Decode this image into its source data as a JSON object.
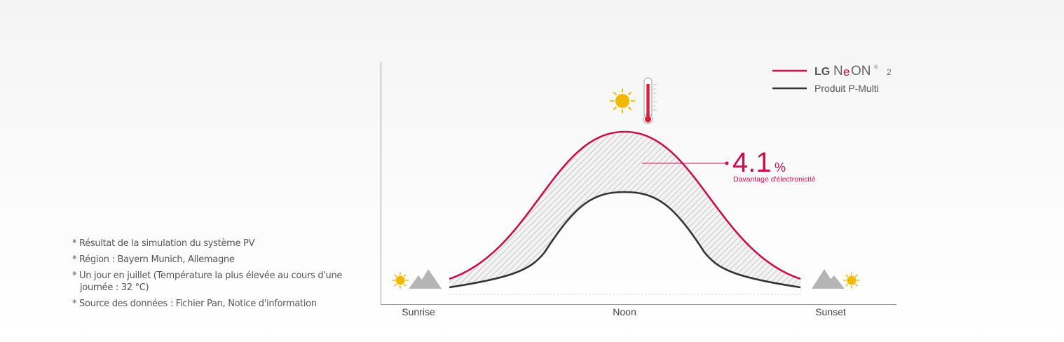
{
  "notes": [
    "* Résultat de la simulation du système PV",
    "* Région : Bayern Munich, Allemagne",
    "* Un jour en juillet (Température la plus élevée au cours d'une journée : 32 °C)",
    "* Source des données : Fichier Pan, Notice d'information"
  ],
  "colors": {
    "neon": "#c8104e",
    "multi": "#333333",
    "sun": "#f5b800",
    "mountain": "#b5b5b5",
    "axis": "#999999"
  },
  "icons": {
    "sunrise": "sun-mountain-icon",
    "sunset": "mountain-sun-icon",
    "noon": "sun-thermometer-icon"
  },
  "chart_data": {
    "type": "line",
    "categories": [
      "Sunrise",
      "Noon",
      "Sunset"
    ],
    "legend": {
      "placement": "top-right",
      "brand": "LG",
      "product_pre": "N",
      "product_e": "e",
      "product_post": "ON",
      "registered": "®",
      "product_gen": "2",
      "other": "Produit P-Multi"
    },
    "series": [
      {
        "name": "LG NeON 2",
        "color": "#c8104e"
      },
      {
        "name": "Produit P-Multi",
        "color": "#333333"
      }
    ],
    "annotation": {
      "value": "4.1",
      "unit": "%",
      "label": "Davantage d'électronicité"
    },
    "grid": false
  }
}
